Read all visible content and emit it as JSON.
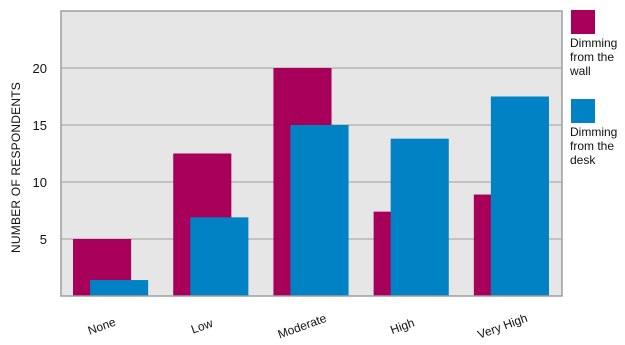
{
  "chart_data": {
    "type": "bar",
    "categories": [
      "None",
      "Low",
      "Moderate",
      "High",
      "Very High"
    ],
    "series": [
      {
        "name": "Dimming from the wall",
        "label_lines": [
          "Dimming",
          "from the",
          "wall"
        ],
        "color": "#a8005a",
        "values": [
          5.0,
          12.5,
          20.0,
          7.4,
          8.9
        ]
      },
      {
        "name": "Dimming from the desk",
        "label_lines": [
          "Dimming",
          "from the",
          "desk"
        ],
        "color": "#0082c4",
        "values": [
          1.4,
          6.9,
          15.0,
          13.8,
          17.5
        ]
      }
    ],
    "title": "",
    "xlabel": "",
    "ylabel": "NUMBER OF RESPONDENTS",
    "ylim": [
      0,
      25
    ],
    "yticks": [
      5,
      10,
      15,
      20
    ],
    "grid": true,
    "legend_position": "right",
    "plot_background": "#e6e6e6",
    "grid_color": "#9e9e9e"
  }
}
